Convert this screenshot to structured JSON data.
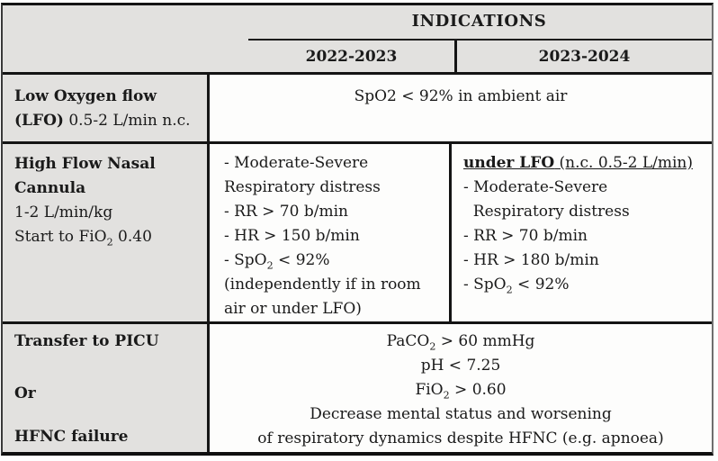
{
  "colors": {
    "header_bg": "#e2e1df",
    "cell_bg": "#fdfdfc",
    "rule": "#141414"
  },
  "header": {
    "title": "INDICATIONS",
    "columns": [
      "2022-2023",
      "2023-2024"
    ]
  },
  "rows": {
    "lfo": {
      "label_lines": [
        [
          {
            "t": "Low Oxygen flow",
            "b": 1
          }
        ],
        [
          {
            "t": "(LFO)",
            "b": 1
          },
          {
            "t": " 0.5-2 L/min n.c."
          }
        ]
      ],
      "data_lines": [
        [
          {
            "t": "SpO2 < 92% in ambient air"
          }
        ]
      ]
    },
    "hfnc": {
      "label_lines": [
        [
          {
            "t": "High Flow Nasal",
            "b": 1
          }
        ],
        [
          {
            "t": "Cannula",
            "b": 1
          }
        ],
        [
          {
            "t": "1-2 L/min/kg"
          }
        ],
        [
          {
            "t": "Start to FiO"
          },
          {
            "t": "2",
            "sub": 1
          },
          {
            "t": " 0.40"
          }
        ]
      ],
      "col_2022_lines": [
        [
          {
            "t": "- Moderate-Severe"
          }
        ],
        [
          {
            "t": "Respiratory distress"
          }
        ],
        [
          {
            "t": "- RR > 70 b/min"
          }
        ],
        [
          {
            "t": "- HR > 150 b/min"
          }
        ],
        [
          {
            "t": "- SpO"
          },
          {
            "t": "2",
            "sub": 1
          },
          {
            "t": " < 92%"
          }
        ],
        [
          {
            "t": "(independently if in room"
          }
        ],
        [
          {
            "t": "air or under LFO)"
          }
        ]
      ],
      "col_2023_lines": [
        [
          {
            "t": "under LFO",
            "b": 1,
            "u": 1
          },
          {
            "t": " (n.c. 0.5-2 L/min)",
            "u": 1
          }
        ],
        [
          {
            "t": "- Moderate-Severe"
          }
        ],
        [
          {
            "t": "  Respiratory distress"
          }
        ],
        [
          {
            "t": "- RR > 70 b/min"
          }
        ],
        [
          {
            "t": "- HR > 180 b/min"
          }
        ],
        [
          {
            "t": "- SpO"
          },
          {
            "t": "2",
            "sub": 1
          },
          {
            "t": " < 92%"
          }
        ]
      ]
    },
    "picu": {
      "label_items": [
        "Transfer to PICU",
        "Or",
        "HFNC failure"
      ],
      "data_lines": [
        [
          {
            "t": "PaCO"
          },
          {
            "t": "2",
            "sub": 1
          },
          {
            "t": " > 60 mmHg"
          }
        ],
        [
          {
            "t": "pH < 7.25"
          }
        ],
        [
          {
            "t": "FiO"
          },
          {
            "t": "2",
            "sub": 1
          },
          {
            "t": " > 0.60"
          }
        ],
        [
          {
            "t": "Decrease mental status and worsening"
          }
        ],
        [
          {
            "t": "of respiratory dynamics despite HFNC (e.g. apnoea)"
          }
        ]
      ]
    }
  }
}
